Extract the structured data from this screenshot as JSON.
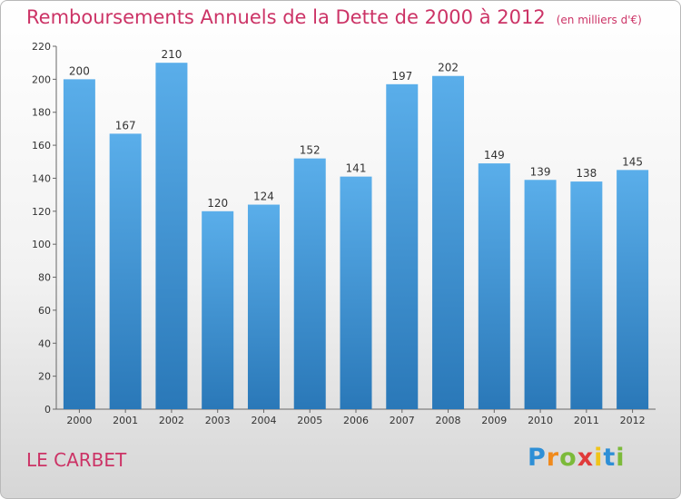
{
  "chart_data": {
    "type": "bar",
    "title": "Remboursements Annuels de la Dette de 2000 à 2012",
    "unit": "(en milliers d'€)",
    "categories": [
      "2000",
      "2001",
      "2002",
      "2003",
      "2004",
      "2005",
      "2006",
      "2007",
      "2008",
      "2009",
      "2010",
      "2011",
      "2012"
    ],
    "values": [
      200,
      167,
      210,
      120,
      124,
      152,
      141,
      197,
      202,
      149,
      139,
      138,
      145
    ],
    "ylim": [
      0,
      220
    ],
    "yticks": [
      0,
      20,
      40,
      60,
      80,
      100,
      120,
      140,
      160,
      180,
      200,
      220
    ],
    "grid": false,
    "legend": "none"
  },
  "commune": "LE CARBET",
  "logo": {
    "letters": [
      "P",
      "r",
      "o",
      "x",
      "i",
      "t",
      "i"
    ],
    "colors": [
      "#2e8fd6",
      "#f08a1c",
      "#7cba3a",
      "#e03a3a",
      "#f0c419",
      "#2e8fd6",
      "#7cba3a"
    ]
  },
  "colors": {
    "bar_top": "#5aaeea",
    "bar_bottom": "#2a78b8",
    "accent": "#cc3366"
  }
}
